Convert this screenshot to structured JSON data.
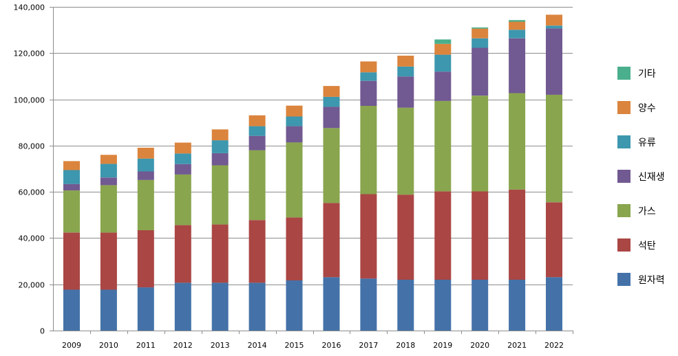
{
  "chart_data": {
    "type": "bar",
    "stacked": true,
    "categories": [
      "2009",
      "2010",
      "2011",
      "2012",
      "2013",
      "2014",
      "2015",
      "2016",
      "2017",
      "2018",
      "2019",
      "2020",
      "2021",
      "2022"
    ],
    "ylim": [
      0,
      140000
    ],
    "yticks": [
      0,
      20000,
      40000,
      60000,
      80000,
      100000,
      120000,
      140000
    ],
    "ytick_labels": [
      "0",
      "20,000",
      "40,000",
      "60,000",
      "80,000",
      "100,000",
      "120,000",
      "140,000"
    ],
    "grid": true,
    "legend_position": "right",
    "series": [
      {
        "name": "원자력",
        "color": "#4472A8",
        "values": [
          17700,
          17700,
          18700,
          20700,
          20700,
          20700,
          21700,
          23100,
          22500,
          22000,
          22000,
          22000,
          22000,
          23100
        ]
      },
      {
        "name": "석탄",
        "color": "#AA4644",
        "values": [
          24700,
          24700,
          24700,
          24900,
          25200,
          27100,
          27200,
          32100,
          36500,
          36800,
          38200,
          38200,
          39000,
          32400
        ]
      },
      {
        "name": "가스",
        "color": "#89A54E",
        "values": [
          18200,
          20500,
          21700,
          21900,
          25600,
          30200,
          32500,
          32400,
          38200,
          37600,
          39100,
          41400,
          41700,
          46500
        ]
      },
      {
        "name": "신재생",
        "color": "#715991",
        "values": [
          2800,
          3300,
          3700,
          4500,
          5200,
          6200,
          7000,
          9200,
          10800,
          13500,
          12700,
          20700,
          23700,
          28700
        ]
      },
      {
        "name": "유류",
        "color": "#3D97AE",
        "values": [
          6000,
          5900,
          5600,
          4600,
          5600,
          4200,
          4200,
          4300,
          3700,
          4300,
          7300,
          4100,
          3700,
          1200
        ]
      },
      {
        "name": "양수",
        "color": "#DB843D",
        "values": [
          3900,
          3900,
          4700,
          4700,
          4700,
          4700,
          4700,
          4700,
          4700,
          4700,
          4700,
          4200,
          3500,
          4700
        ]
      },
      {
        "name": "기타",
        "color": "#4AAF8C",
        "values": [
          0,
          0,
          0,
          0,
          0,
          0,
          0,
          0,
          0,
          0,
          1900,
          500,
          700,
          0
        ]
      }
    ],
    "legend_order": [
      "기타",
      "양수",
      "유류",
      "신재생",
      "가스",
      "석탄",
      "원자력"
    ]
  }
}
